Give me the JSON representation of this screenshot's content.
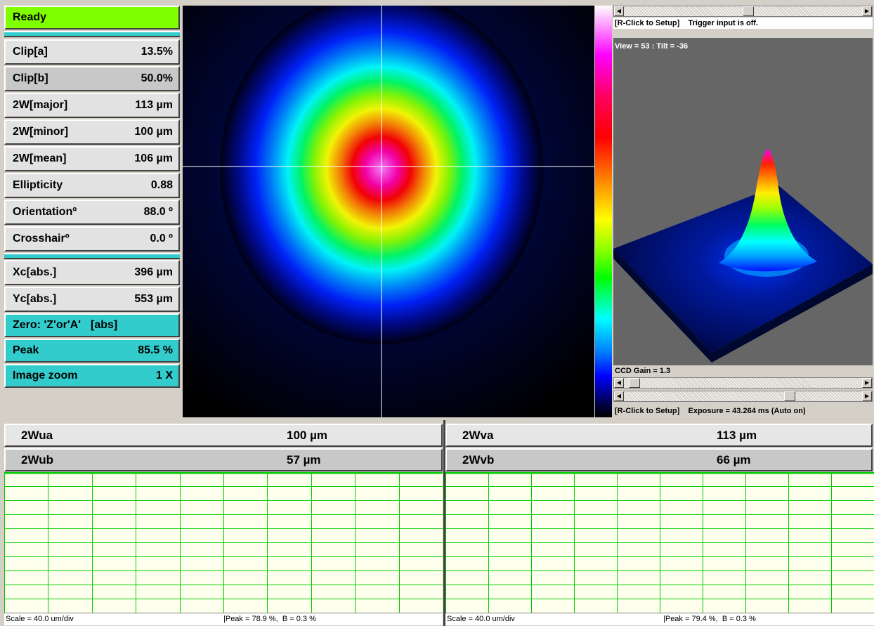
{
  "status": "Ready",
  "params": [
    {
      "label": "Clip[a]",
      "value": "13.5%"
    },
    {
      "label": "Clip[b]",
      "value": "50.0%"
    },
    {
      "label": "2W[major]",
      "value": "113 µm"
    },
    {
      "label": "2W[minor]",
      "value": "100 µm"
    },
    {
      "label": "2W[mean]",
      "value": "106 µm"
    },
    {
      "label": "Ellipticity",
      "value": "0.88"
    },
    {
      "label": "Orientationº",
      "value": "88.0 º"
    },
    {
      "label": "Crosshairº",
      "value": "0.0 º"
    },
    {
      "label": "Xc[abs.]",
      "value": "396 µm"
    },
    {
      "label": "Yc[abs.]",
      "value": "553 µm"
    },
    {
      "label": "Zero: 'Z'or'A'",
      "value": "[abs]"
    },
    {
      "label": "Peak",
      "value": "85.5 %"
    },
    {
      "label": "Image zoom",
      "value": "1 X"
    }
  ],
  "panel3d": {
    "top_status": "[R-Click to Setup]    Trigger input is off.",
    "view_label": "View = 53 : Tilt = -36",
    "gain_label": "CCD Gain = 1.3",
    "bottom_status": "[R-Click to Setup]    Exposure = 43.264 ms (Auto on)",
    "top_scroll_position": 0.52,
    "gain_scroll_position": 0.02,
    "exposure_scroll_position": 0.7
  },
  "profiles": {
    "u": {
      "a_label": "2Wua",
      "a_value": "100 µm",
      "b_label": "2Wub",
      "b_value": "57 µm",
      "scale": "Scale = 40.0 um/div",
      "peak": "|Peak = 78.9 %,  B = 0.3 %"
    },
    "v": {
      "a_label": "2Wva",
      "a_value": "113 µm",
      "b_label": "2Wvb",
      "b_value": "66 µm",
      "scale": "Scale = 40.0 um/div",
      "peak": "|Peak = 79.4 %,  B = 0.3 %"
    }
  },
  "colors": {
    "status_green": "#80ff00",
    "panel_cyan": "#33cccc",
    "grid_green": "#00cc00",
    "plot_bg": "#ffffee"
  }
}
